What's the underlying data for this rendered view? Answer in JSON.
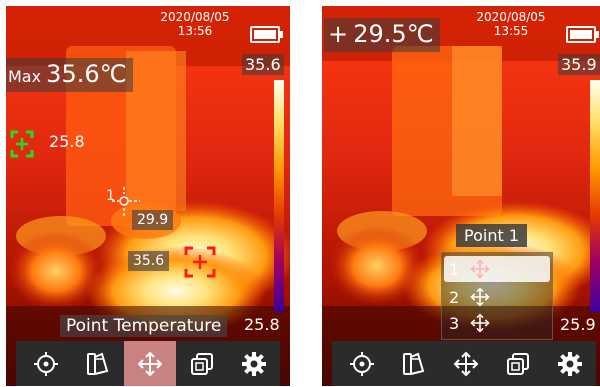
{
  "screen1": {
    "date": "2020/08/05",
    "time": "13:56",
    "max_label": "Max",
    "max_temp": "35.6℃",
    "scale_top": "35.6",
    "scale_bottom": "25.8",
    "min_marker_value": "25.8",
    "point_marker_label": "1",
    "point_value": "29.9",
    "max_marker_value": "35.6",
    "mode_caption": "Point Temperature",
    "min_marker_color": "#22dd22",
    "max_marker_color": "#ff1a1a"
  },
  "screen2": {
    "date": "2020/08/05",
    "time": "13:55",
    "point_prefix": "+",
    "point_temp": "29.5℃",
    "scale_top": "35.9",
    "scale_bottom": "25.9",
    "popup_title": "Point 1",
    "menu_items": [
      {
        "num": "1",
        "selected": true
      },
      {
        "num": "2",
        "selected": false
      },
      {
        "num": "3",
        "selected": false
      }
    ]
  },
  "toolbar": {
    "icons": [
      "target-icon",
      "palette-icon",
      "move-icon",
      "layers-icon",
      "gear-icon"
    ],
    "active_screen1": "move-icon",
    "active_color": "#ffa0a0"
  }
}
